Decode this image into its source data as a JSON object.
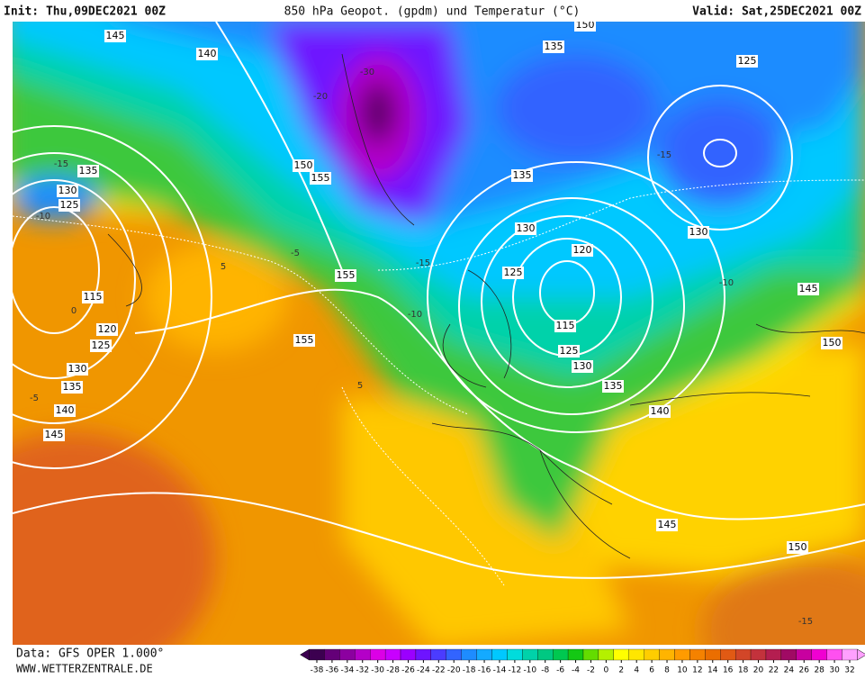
{
  "header": {
    "init": "Init: Thu,09DEC2021 00Z",
    "title": "850 hPa Geopot. (gpdm) und Temperatur (°C)",
    "valid": "Valid: Sat,25DEC2021 00Z"
  },
  "footer": {
    "data": "Data: GFS OPER 1.000°",
    "site": "WWW.WETTERZENTRALE.DE"
  },
  "colorbar": {
    "ticks": [
      -38,
      -36,
      -34,
      -32,
      -30,
      -28,
      -26,
      -24,
      -22,
      -20,
      -18,
      -16,
      -14,
      -12,
      -10,
      -8,
      -6,
      -4,
      -2,
      0,
      2,
      4,
      6,
      8,
      10,
      12,
      14,
      16,
      18,
      20,
      22,
      24,
      26,
      28,
      30,
      32
    ],
    "colors": [
      "#3c0050",
      "#640078",
      "#8c00a0",
      "#b400c8",
      "#dc00e6",
      "#c800ff",
      "#9b00ff",
      "#6e14ff",
      "#4b3cff",
      "#3264ff",
      "#1e8cff",
      "#14aaff",
      "#00c8ff",
      "#00dcdc",
      "#00d2aa",
      "#00c882",
      "#00c850",
      "#14c814",
      "#64dc00",
      "#b4f000",
      "#ffff00",
      "#ffe600",
      "#ffcd00",
      "#ffb400",
      "#ff9b00",
      "#f58200",
      "#eb6e00",
      "#e15a14",
      "#d24628",
      "#c3323c",
      "#b41e50",
      "#a00a64",
      "#c800a0",
      "#f000d2",
      "#ff50f0",
      "#ffa0ff"
    ]
  },
  "geopotential_labels": [
    145,
    140,
    135,
    130,
    125,
    150,
    155,
    155,
    115,
    120,
    125,
    130,
    135,
    140,
    145,
    155,
    135,
    150,
    125,
    135,
    130,
    125,
    120,
    115,
    125,
    130,
    135,
    140,
    145,
    150,
    130,
    145,
    150
  ],
  "isotherm_labels": [
    -15,
    -10,
    -5,
    -5,
    -15,
    -10,
    -15,
    -10,
    5,
    5,
    -20,
    -30,
    -15,
    0
  ]
}
